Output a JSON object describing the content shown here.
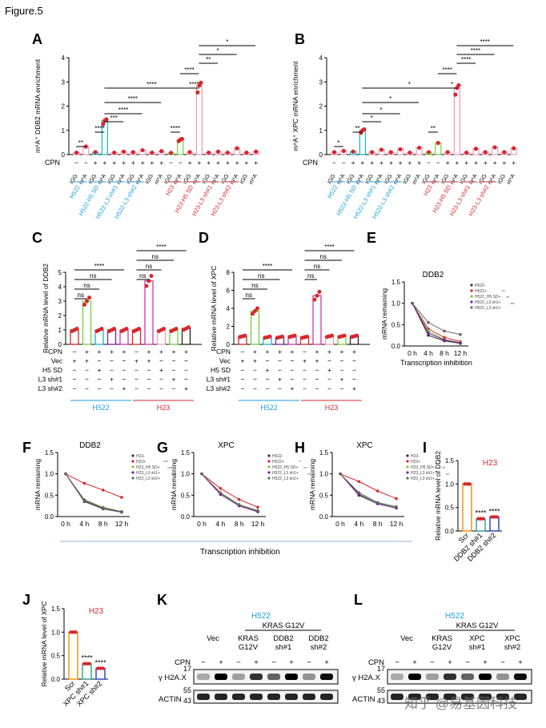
{
  "figure_title": "Figure.5",
  "watermark": "知乎 @易基因科技",
  "colors": {
    "blue": "#1ba1dc",
    "red": "#d9262b",
    "pink": "#ef9bb5",
    "cyan": "#19b5c2",
    "green": "#6fd23b",
    "magenta": "#d236b0",
    "purple": "#7b1f9e",
    "orange": "#f28c00",
    "navy": "#1e3cc8",
    "teal": "#2e9e8a"
  },
  "shared_labels": {
    "transcription_inhibition": "Transcription inhibition",
    "mrna_remaining": "mRNA remaining",
    "time_ticks": [
      "0 h",
      "4 h",
      "8 h",
      "12 h"
    ],
    "h522": "H522",
    "h23": "H23",
    "cpn": "CPN",
    "vec": "Vec",
    "h5sd": "H5 SD",
    "l3sh1": "L3 sh#1",
    "l3sh2": "L3 sh#2"
  },
  "chart_data": [
    {
      "panel": "A",
      "type": "bar",
      "ylabel": "m⁶A⁺ DDB2 mRNA enrichment",
      "ylim": [
        0,
        4
      ],
      "yticks": [
        "0",
        "1",
        "2",
        "3",
        "4"
      ],
      "categories": [
        "IGG",
        "m⁶A",
        "IGG",
        "m⁶A",
        "IGG",
        "m⁶A",
        "IGG",
        "m⁶A",
        "IGG",
        "m⁶A",
        "IGG",
        "m⁶A",
        "IGG",
        "m⁶A",
        "IGG",
        "m⁶A",
        "IGG",
        "m⁶A",
        "IGG",
        "m⁶A"
      ],
      "cpn": [
        "−",
        "−",
        "+",
        "+",
        "+",
        "+",
        "+",
        "+",
        "+",
        "+",
        "−",
        "−",
        "+",
        "+",
        "+",
        "+",
        "+",
        "+",
        "+",
        "+"
      ],
      "values": [
        0.08,
        0.33,
        0.1,
        1.4,
        0.08,
        0.12,
        0.1,
        0.18,
        0.08,
        0.14,
        0.07,
        0.62,
        0.1,
        2.85,
        0.08,
        0.12,
        0.08,
        0.26,
        0.08,
        0.12
      ],
      "groups": [
        "H522",
        "H522-H5 SD",
        "H522-L3 sh#1",
        "H522-L3 sh#2",
        "H23",
        "H23-H5 SD",
        "H23-L3 sh#1",
        "H23-L3 sh#2"
      ],
      "sig": [
        "**",
        "****",
        "***",
        "****",
        "****",
        "****",
        "****",
        "**",
        "*",
        "*",
        "****",
        "****",
        "****",
        "****",
        "****",
        "****",
        "*",
        "*",
        "*"
      ]
    },
    {
      "panel": "B",
      "type": "bar",
      "ylabel": "m⁶A⁺ XPC mRNA enrichment",
      "ylim": [
        0,
        4
      ],
      "yticks": [
        "0",
        "1",
        "2",
        "3",
        "4"
      ],
      "categories": [
        "IGG",
        "m⁶A",
        "IGG",
        "m⁶A",
        "IGG",
        "m⁶A",
        "IGG",
        "m⁶A",
        "IGG",
        "m⁶A",
        "IGG",
        "m⁶A",
        "IGG",
        "m⁶A",
        "IGG",
        "m⁶A",
        "IGG",
        "m⁶A",
        "IGG",
        "m⁶A"
      ],
      "cpn": [
        "−",
        "−",
        "+",
        "+",
        "+",
        "+",
        "+",
        "+",
        "+",
        "+",
        "−",
        "−",
        "+",
        "+",
        "+",
        "+",
        "+",
        "+",
        "+",
        "+"
      ],
      "values": [
        0.1,
        0.15,
        0.12,
        1.0,
        0.1,
        0.2,
        0.1,
        0.22,
        0.08,
        0.28,
        0.1,
        0.48,
        0.1,
        2.75,
        0.08,
        0.24,
        0.1,
        0.3,
        0.1,
        0.26
      ],
      "groups": [
        "H522",
        "H522-H5 SD",
        "H522-L3 sh#1",
        "H522-L3 sh#2",
        "H23",
        "H23-H5 SD",
        "H23-L3 sh#1",
        "H23-L3 sh#2"
      ],
      "sig": [
        "*",
        "**",
        "*",
        "*",
        "*",
        "*",
        "****",
        "****",
        "****",
        "****",
        "**",
        "*",
        "**",
        "*",
        "***",
        "**",
        "****",
        "**",
        "***",
        "**"
      ]
    },
    {
      "panel": "C",
      "type": "bar",
      "ylabel": "Relative mRNA level of DDB2",
      "ylim": [
        0,
        5
      ],
      "yticks": [
        "0",
        "1",
        "2",
        "3",
        "4",
        "5"
      ],
      "categories": [
        "1",
        "2",
        "3",
        "4",
        "5",
        "6",
        "7",
        "8",
        "9",
        "10"
      ],
      "values": [
        1.0,
        3.0,
        1.0,
        1.0,
        1.0,
        1.0,
        4.4,
        1.0,
        1.0,
        1.1
      ],
      "condition_rows": {
        "CPN": [
          "−",
          "+",
          "+",
          "+",
          "+",
          "−",
          "+",
          "+",
          "+",
          "+"
        ],
        "Vec": [
          "+",
          "+",
          "−",
          "−",
          "−",
          "+",
          "+",
          "−",
          "−",
          "−"
        ],
        "H5 SD": [
          "−",
          "−",
          "+",
          "−",
          "−",
          "−",
          "−",
          "+",
          "−",
          "−"
        ],
        "L3 sh#1": [
          "−",
          "−",
          "−",
          "+",
          "−",
          "−",
          "−",
          "−",
          "+",
          "−"
        ],
        "L3 sh#2": [
          "−",
          "−",
          "−",
          "−",
          "+",
          "−",
          "−",
          "−",
          "−",
          "+"
        ]
      },
      "sig": [
        "ns",
        "ns",
        "ns",
        "****",
        "ns",
        "ns",
        "ns",
        "****"
      ]
    },
    {
      "panel": "D",
      "type": "bar",
      "ylabel": "Relative mRNA level of XPC",
      "ylim": [
        0,
        8
      ],
      "yticks": [
        "0",
        "2",
        "4",
        "6",
        "8"
      ],
      "categories": [
        "1",
        "2",
        "3",
        "4",
        "5",
        "6",
        "7",
        "8",
        "9",
        "10"
      ],
      "values": [
        0.9,
        3.7,
        0.8,
        0.8,
        0.9,
        0.8,
        5.4,
        0.9,
        0.9,
        0.9
      ],
      "sig": [
        "ns",
        "ns",
        "ns",
        "****",
        "ns",
        "ns",
        "ns",
        "****"
      ]
    },
    {
      "panel": "E",
      "type": "line",
      "title": "DDB2",
      "ylabel": "mRNA remaining",
      "xlabel": "Transcription inhibition",
      "x": [
        "0 h",
        "4 h",
        "8 h",
        "12 h"
      ],
      "ylim": [
        0,
        1.5
      ],
      "yticks": [
        "0.0",
        "0.5",
        "1.0",
        "1.5"
      ],
      "series": [
        {
          "name": "H522-",
          "values": [
            1.0,
            0.25,
            0.12,
            0.06
          ]
        },
        {
          "name": "H522+",
          "values": [
            1.0,
            0.4,
            0.2,
            0.1
          ]
        },
        {
          "name": "H522_H5 SD+",
          "values": [
            1.0,
            0.35,
            0.15,
            0.08
          ]
        },
        {
          "name": "H522_L3 sh1+",
          "values": [
            1.0,
            0.3,
            0.14,
            0.07
          ]
        },
        {
          "name": "H522_L3 sh2+",
          "values": [
            1.0,
            0.55,
            0.35,
            0.27
          ]
        }
      ],
      "sig": [
        "**",
        "**",
        "***"
      ]
    },
    {
      "panel": "F",
      "type": "line",
      "title": "DDB2",
      "ylabel": "mRNA remaining",
      "x": [
        "0 h",
        "4 h",
        "8 h",
        "12 h"
      ],
      "ylim": [
        0,
        1.5
      ],
      "yticks": [
        "0.0",
        "0.5",
        "1.0",
        "1.5"
      ],
      "series": [
        {
          "name": "H23-",
          "values": [
            1.0,
            0.35,
            0.18,
            0.1
          ]
        },
        {
          "name": "H23+",
          "values": [
            1.0,
            0.78,
            0.62,
            0.45
          ]
        },
        {
          "name": "H23_H5 SD+",
          "values": [
            1.0,
            0.4,
            0.22,
            0.12
          ]
        },
        {
          "name": "H23_L3 sh1+",
          "values": [
            1.0,
            0.38,
            0.2,
            0.11
          ]
        },
        {
          "name": "H23_L3 sh2+",
          "values": [
            1.0,
            0.36,
            0.19,
            0.1
          ]
        }
      ],
      "sig": [
        "***",
        "***",
        "***"
      ]
    },
    {
      "panel": "G",
      "type": "line",
      "title": "XPC",
      "ylabel": "mRNA remaining",
      "x": [
        "0 h",
        "4 h",
        "8 h",
        "12 h"
      ],
      "ylim": [
        0,
        1.5
      ],
      "yticks": [
        "0.0",
        "0.5",
        "1.0",
        "1.5"
      ],
      "series": [
        {
          "name": "H522-",
          "values": [
            1.0,
            0.52,
            0.26,
            0.12
          ]
        },
        {
          "name": "H522+",
          "values": [
            1.0,
            0.66,
            0.4,
            0.22
          ]
        },
        {
          "name": "H522_H5 SD+",
          "values": [
            1.0,
            0.54,
            0.27,
            0.13
          ]
        },
        {
          "name": "H522_L3 sh1+",
          "values": [
            1.0,
            0.52,
            0.25,
            0.11
          ]
        },
        {
          "name": "H522_L3 sh2+",
          "values": [
            1.0,
            0.56,
            0.28,
            0.14
          ]
        }
      ],
      "sig": [
        "*",
        "**",
        "**"
      ]
    },
    {
      "panel": "H",
      "type": "line",
      "title": "XPC",
      "ylabel": "mRNA remaining",
      "x": [
        "0 h",
        "4 h",
        "8 h",
        "12 h"
      ],
      "ylim": [
        0,
        1.5
      ],
      "yticks": [
        "0.0",
        "0.5",
        "1.0",
        "1.5"
      ],
      "series": [
        {
          "name": "H23-",
          "values": [
            1.0,
            0.5,
            0.3,
            0.2
          ]
        },
        {
          "name": "H23+",
          "values": [
            1.0,
            0.82,
            0.6,
            0.42
          ]
        },
        {
          "name": "H23_H5 SD+",
          "values": [
            1.0,
            0.55,
            0.32,
            0.22
          ]
        },
        {
          "name": "H23_L3 sh1+",
          "values": [
            1.0,
            0.52,
            0.3,
            0.2
          ]
        },
        {
          "name": "H23_L3 sh2+",
          "values": [
            1.0,
            0.56,
            0.33,
            0.23
          ]
        }
      ],
      "sig": [
        "**",
        "**",
        "**"
      ]
    },
    {
      "panel": "I",
      "type": "bar",
      "title": "H23",
      "ylabel": "Relative mRNA level of DDB2",
      "ylim": [
        0,
        1.5
      ],
      "yticks": [
        "0.0",
        "0.5",
        "1.0",
        "1.5"
      ],
      "categories": [
        "Scr",
        "DDB2 sh#1",
        "DDB2 sh#2"
      ],
      "values": [
        1.0,
        0.26,
        0.3
      ],
      "sig": [
        "****",
        "****"
      ]
    },
    {
      "panel": "J",
      "type": "bar",
      "title": "H23",
      "ylabel": "Relative mRNA level of XPC",
      "ylim": [
        0,
        1.5
      ],
      "yticks": [
        "0.0",
        "0.5",
        "1.0",
        "1.5"
      ],
      "categories": [
        "Scr",
        "XPC sh#1",
        "XPC sh#2"
      ],
      "values": [
        1.0,
        0.33,
        0.23
      ],
      "sig": [
        "****",
        "****"
      ]
    }
  ],
  "blots": {
    "K": {
      "cell": "H522",
      "kras": "KRAS G12V",
      "lanes": [
        "Vec",
        "KRAS G12V",
        "DDB2 sh#1",
        "DDB2 sh#2"
      ],
      "cpn": [
        "−",
        "+",
        "−",
        "+",
        "−",
        "+",
        "−",
        "+"
      ],
      "rows": [
        {
          "name": "γ H2A.X",
          "mw": "17"
        },
        {
          "name": "ACTIN",
          "mw1": "55",
          "mw2": "43"
        }
      ]
    },
    "L": {
      "cell": "H522",
      "kras": "KRAS G12V",
      "lanes": [
        "Vec",
        "KRAS G12V",
        "XPC sh#1",
        "XPC sh#2"
      ],
      "cpn": [
        "−",
        "+",
        "−",
        "+",
        "−",
        "+",
        "−",
        "+"
      ],
      "rows": [
        {
          "name": "γ H2A.X",
          "mw": "17"
        },
        {
          "name": "ACTIN",
          "mw1": "55",
          "mw2": "43"
        }
      ]
    }
  }
}
